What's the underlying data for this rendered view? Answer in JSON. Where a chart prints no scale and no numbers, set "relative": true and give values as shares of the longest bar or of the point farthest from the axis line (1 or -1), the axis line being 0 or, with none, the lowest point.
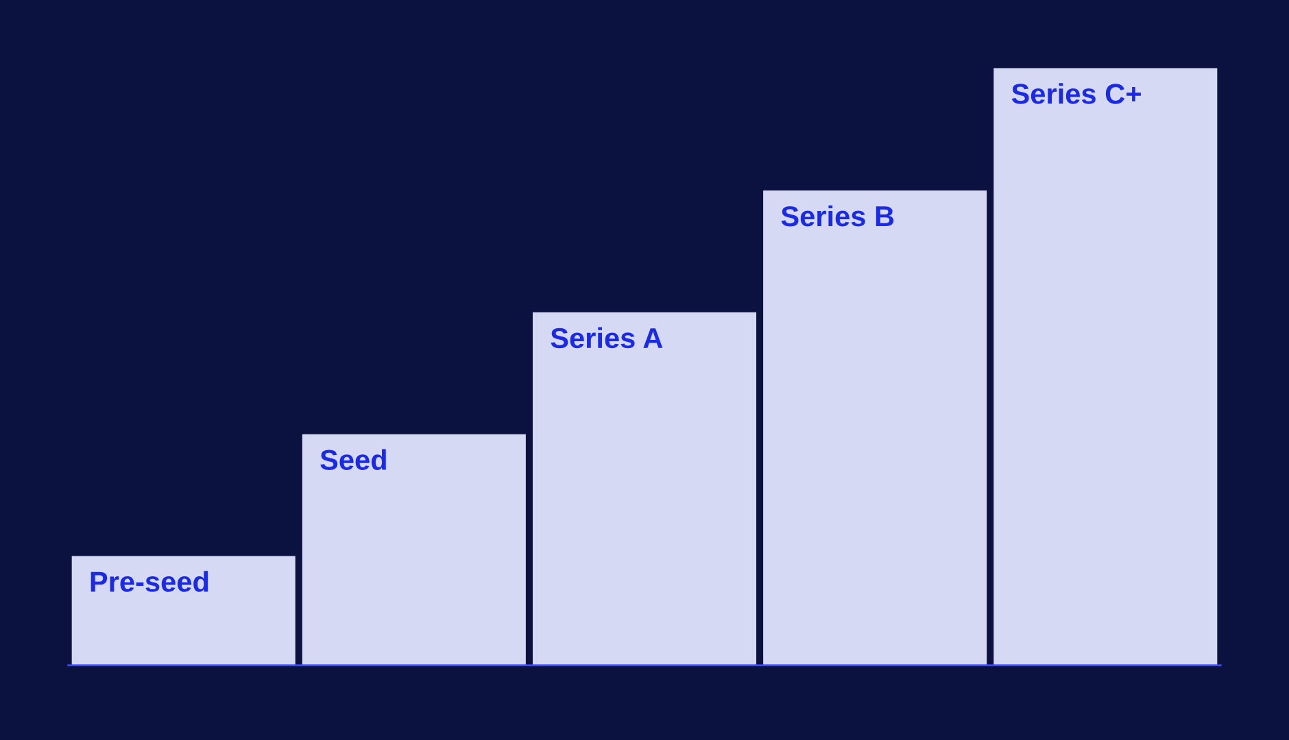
{
  "chart_data": {
    "type": "bar",
    "relative": true,
    "categories": [
      "Pre-seed",
      "Seed",
      "Series A",
      "Series B",
      "Series C+"
    ],
    "values": [
      0.183,
      0.387,
      0.591,
      0.795,
      1
    ],
    "color": "#d6d9f3"
  }
}
